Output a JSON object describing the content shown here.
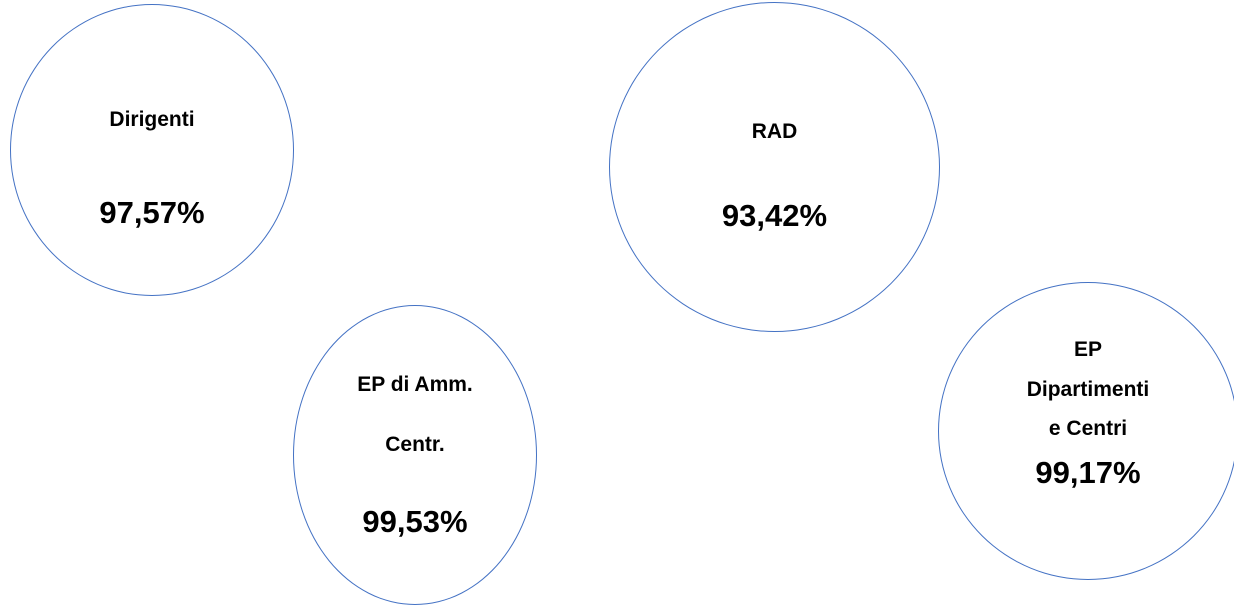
{
  "nodes": [
    {
      "id": "dirigenti",
      "label_lines": [
        "Dirigenti"
      ],
      "value": "97,57%"
    },
    {
      "id": "rad",
      "label_lines": [
        "RAD"
      ],
      "value": "93,42%"
    },
    {
      "id": "ep-amm-centr",
      "label_lines": [
        "EP di Amm.",
        "Centr."
      ],
      "value": "99,53%"
    },
    {
      "id": "ep-dipartimenti",
      "label_lines": [
        "EP",
        "Dipartimenti",
        "e Centri"
      ],
      "value": "99,17%"
    }
  ],
  "colors": {
    "circle_border": "#4472C4",
    "text": "#000000",
    "background": "#ffffff"
  }
}
